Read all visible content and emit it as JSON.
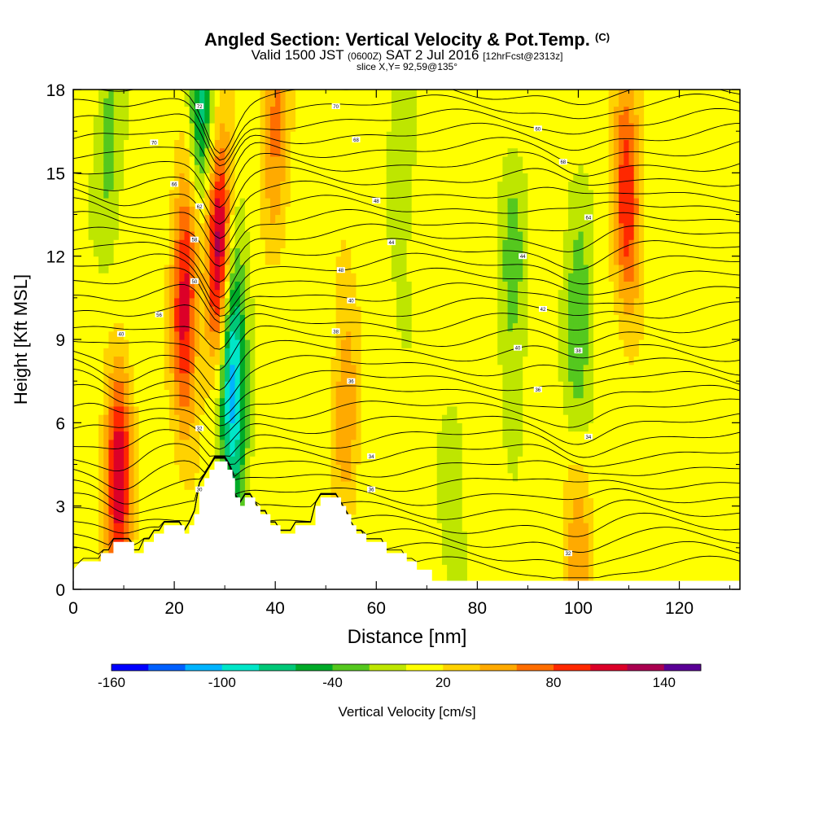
{
  "header": {
    "title": "Angled Section: Vertical Velocity & Pot.Temp.",
    "title_unit": "(C)",
    "valid_prefix": "Valid 1500 JST",
    "valid_utc": "(0600Z)",
    "valid_date": "SAT 2 Jul 2016",
    "forecast": "[12hrFcst@2313z]",
    "slice": "slice X,Y= 92,59@135°"
  },
  "colorbar": {
    "label": "Vertical Velocity [cm/s]",
    "tick_labels": [
      "-160",
      "-100",
      "-40",
      "20",
      "80",
      "140"
    ],
    "tick_values": [
      -160,
      -100,
      -40,
      20,
      80,
      140
    ],
    "bin_start": -160,
    "bin_width": 20,
    "colors": [
      "#0000ff",
      "#0060ff",
      "#00b4ff",
      "#00e6c8",
      "#00c878",
      "#00aa28",
      "#55c81e",
      "#bee600",
      "#ffff00",
      "#ffd200",
      "#ffaa00",
      "#ff6e00",
      "#ff2800",
      "#dc0028",
      "#aa0050",
      "#5a0096"
    ]
  },
  "chart_data": {
    "type": "heatmap",
    "xlabel": "Distance [nm]",
    "ylabel": "Height [Kft MSL]",
    "xlim": [
      0,
      132
    ],
    "ylim": [
      0,
      18
    ],
    "xticks": [
      "0",
      "20",
      "40",
      "60",
      "80",
      "100",
      "120"
    ],
    "yticks": [
      "0",
      "3",
      "6",
      "9",
      "12",
      "15",
      "18"
    ],
    "xtick_values": [
      0,
      20,
      40,
      60,
      80,
      100,
      120
    ],
    "ytick_values": [
      0,
      3,
      6,
      9,
      12,
      15,
      18
    ],
    "field": "Vertical Velocity [cm/s]",
    "contour_field": "Potential Temperature (C)",
    "velocity_features": [
      {
        "x": 9,
        "z": 4.0,
        "w": 110
      },
      {
        "x": 22,
        "z": 10.0,
        "w": 100
      },
      {
        "x": 24,
        "z": 16.0,
        "w": 60
      },
      {
        "x": 29,
        "z": 12.0,
        "w": 150
      },
      {
        "x": 31,
        "z": 9.0,
        "w": -110
      },
      {
        "x": 25,
        "z": 17.0,
        "w": -120
      },
      {
        "x": 32,
        "z": 6.0,
        "w": -50
      },
      {
        "x": 40,
        "z": 17.0,
        "w": 60
      },
      {
        "x": 54,
        "z": 7.0,
        "w": 50
      },
      {
        "x": 87,
        "z": 11.0,
        "w": -40
      },
      {
        "x": 100,
        "z": 9.0,
        "w": -55
      },
      {
        "x": 110,
        "z": 13.0,
        "w": 55
      },
      {
        "x": 109,
        "z": 16.0,
        "w": 45
      },
      {
        "x": 100,
        "z": 2.0,
        "w": 50
      },
      {
        "x": 7,
        "z": 16.0,
        "w": -35
      },
      {
        "x": 65,
        "z": 15.0,
        "w": -25
      },
      {
        "x": 75,
        "z": 2.5,
        "w": -20
      }
    ],
    "contour_labels": [
      {
        "x": 25,
        "z": 17.4,
        "label": "72"
      },
      {
        "x": 16,
        "z": 16.1,
        "label": "70"
      },
      {
        "x": 20,
        "z": 14.6,
        "label": "66"
      },
      {
        "x": 25,
        "z": 13.8,
        "label": "62"
      },
      {
        "x": 24,
        "z": 12.6,
        "label": "58"
      },
      {
        "x": 24,
        "z": 11.1,
        "label": "50"
      },
      {
        "x": 17,
        "z": 9.9,
        "label": "56"
      },
      {
        "x": 9.5,
        "z": 9.2,
        "label": "40"
      },
      {
        "x": 52,
        "z": 17.4,
        "label": "70"
      },
      {
        "x": 56,
        "z": 16.2,
        "label": "68"
      },
      {
        "x": 60,
        "z": 14.0,
        "label": "48"
      },
      {
        "x": 63,
        "z": 12.5,
        "label": "44"
      },
      {
        "x": 53,
        "z": 11.5,
        "label": "48"
      },
      {
        "x": 55,
        "z": 10.4,
        "label": "40"
      },
      {
        "x": 52,
        "z": 9.3,
        "label": "38"
      },
      {
        "x": 55,
        "z": 7.5,
        "label": "36"
      },
      {
        "x": 59,
        "z": 4.8,
        "label": "34"
      },
      {
        "x": 59,
        "z": 3.6,
        "label": "36"
      },
      {
        "x": 25,
        "z": 5.8,
        "label": "32"
      },
      {
        "x": 25,
        "z": 3.6,
        "label": "30"
      },
      {
        "x": 92,
        "z": 16.6,
        "label": "60"
      },
      {
        "x": 97,
        "z": 15.4,
        "label": "68"
      },
      {
        "x": 102,
        "z": 13.4,
        "label": "64"
      },
      {
        "x": 89,
        "z": 12.0,
        "label": "44"
      },
      {
        "x": 93,
        "z": 10.1,
        "label": "42"
      },
      {
        "x": 88,
        "z": 8.7,
        "label": "40"
      },
      {
        "x": 100,
        "z": 8.6,
        "label": "38"
      },
      {
        "x": 92,
        "z": 7.2,
        "label": "36"
      },
      {
        "x": 102,
        "z": 5.5,
        "label": "34"
      },
      {
        "x": 98,
        "z": 1.3,
        "label": "32"
      }
    ],
    "terrain": [
      [
        0,
        0.7
      ],
      [
        1.5,
        1.0
      ],
      [
        5.5,
        1.0
      ],
      [
        5.5,
        1.3
      ],
      [
        8,
        1.3
      ],
      [
        8,
        1.7
      ],
      [
        12,
        1.7
      ],
      [
        12,
        1.3
      ],
      [
        14,
        1.3
      ],
      [
        14,
        1.7
      ],
      [
        16,
        1.7
      ],
      [
        16,
        2.0
      ],
      [
        18,
        2.0
      ],
      [
        18,
        2.3
      ],
      [
        22,
        2.3
      ],
      [
        22,
        2.0
      ],
      [
        23,
        2.0
      ],
      [
        23,
        2.3
      ],
      [
        24,
        2.3
      ],
      [
        24,
        2.7
      ],
      [
        25,
        2.7
      ],
      [
        25,
        3.7
      ],
      [
        26,
        3.7
      ],
      [
        26,
        4.0
      ],
      [
        27,
        4.0
      ],
      [
        27,
        4.3
      ],
      [
        28,
        4.3
      ],
      [
        28,
        4.6
      ],
      [
        30.5,
        4.6
      ],
      [
        30.5,
        4.3
      ],
      [
        31.5,
        4.3
      ],
      [
        31.5,
        4.0
      ],
      [
        32,
        4.0
      ],
      [
        32,
        3.3
      ],
      [
        33,
        3.3
      ],
      [
        33,
        3.0
      ],
      [
        34,
        3.0
      ],
      [
        34,
        3.3
      ],
      [
        36,
        3.3
      ],
      [
        36,
        3.0
      ],
      [
        37,
        3.0
      ],
      [
        37,
        2.7
      ],
      [
        39,
        2.7
      ],
      [
        39,
        2.3
      ],
      [
        41,
        2.3
      ],
      [
        41,
        2.0
      ],
      [
        44,
        2.0
      ],
      [
        44,
        2.3
      ],
      [
        48,
        2.3
      ],
      [
        48,
        3.0
      ],
      [
        49,
        3.0
      ],
      [
        49,
        3.3
      ],
      [
        53,
        3.3
      ],
      [
        53,
        3.0
      ],
      [
        54,
        3.0
      ],
      [
        54,
        2.7
      ],
      [
        55,
        2.7
      ],
      [
        55,
        2.3
      ],
      [
        56,
        2.3
      ],
      [
        56,
        2.0
      ],
      [
        58,
        2.0
      ],
      [
        58,
        1.7
      ],
      [
        62,
        1.7
      ],
      [
        62,
        1.3
      ],
      [
        66,
        1.3
      ],
      [
        66,
        1.0
      ],
      [
        68,
        1.0
      ],
      [
        68,
        0.7
      ],
      [
        71,
        0.7
      ],
      [
        71,
        0.3
      ],
      [
        132,
        0.3
      ]
    ]
  }
}
